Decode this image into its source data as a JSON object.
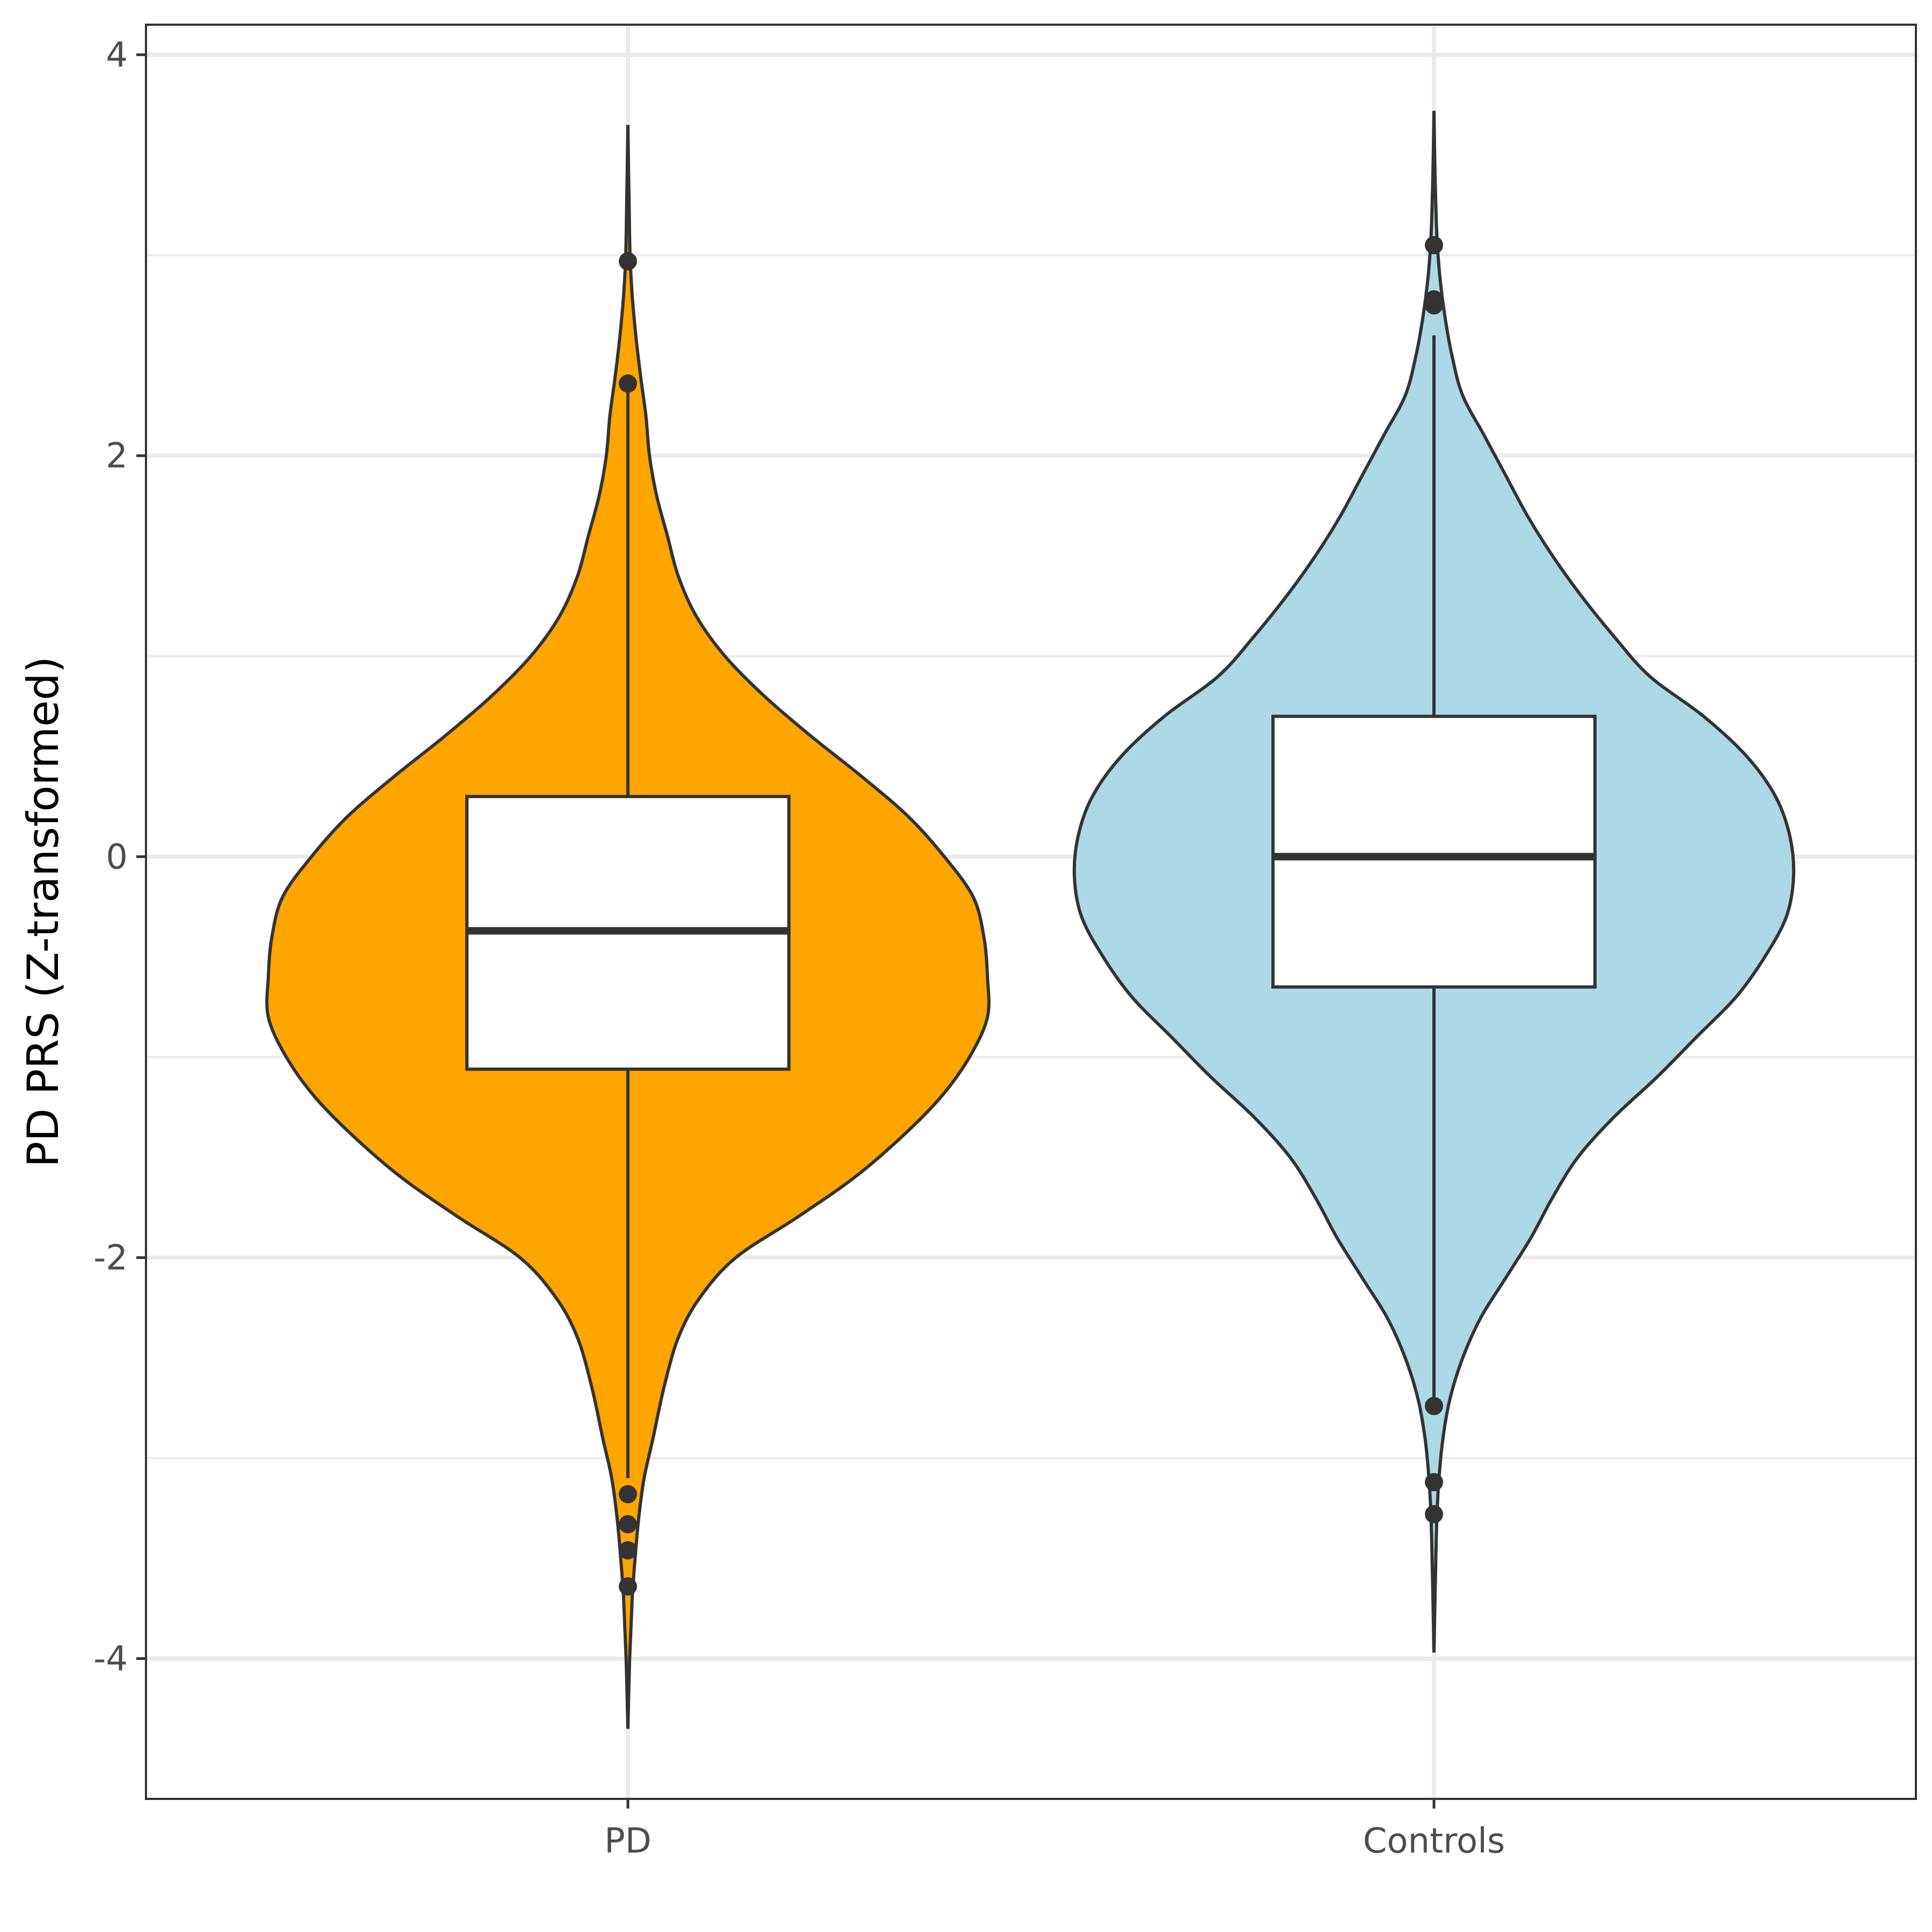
{
  "chart_data": {
    "type": "violin",
    "title": "",
    "xlabel": "",
    "ylabel": "PD PRS (Z-transformed)",
    "ylim": [
      -4.7,
      4.15
    ],
    "y_ticks": [
      -4,
      -2,
      0,
      2,
      4
    ],
    "y_tick_labels": [
      "-4",
      "-2",
      "0",
      "2",
      "4"
    ],
    "grid": true,
    "legend": "none",
    "categories": [
      "PD",
      "Controls"
    ],
    "groups": [
      {
        "name": "PD",
        "fill": "#FFA500",
        "range": [
          -4.35,
          3.65
        ],
        "box": {
          "q1": -1.06,
          "median": -0.37,
          "q3": 0.3,
          "whisker_low": -3.1,
          "whisker_high": 2.35
        },
        "outliers": [
          2.97,
          2.36,
          -3.18,
          -3.33,
          -3.46,
          -3.64
        ],
        "density_profile": [
          [
            -4.35,
            0.0
          ],
          [
            -4.0,
            0.005
          ],
          [
            -3.7,
            0.012
          ],
          [
            -3.5,
            0.02
          ],
          [
            -3.3,
            0.03
          ],
          [
            -3.1,
            0.045
          ],
          [
            -2.9,
            0.07
          ],
          [
            -2.65,
            0.1
          ],
          [
            -2.4,
            0.14
          ],
          [
            -2.2,
            0.2
          ],
          [
            -2.0,
            0.3
          ],
          [
            -1.8,
            0.47
          ],
          [
            -1.6,
            0.63
          ],
          [
            -1.4,
            0.76
          ],
          [
            -1.2,
            0.87
          ],
          [
            -1.0,
            0.95
          ],
          [
            -0.8,
            1.0
          ],
          [
            -0.6,
            1.0
          ],
          [
            -0.4,
            0.99
          ],
          [
            -0.2,
            0.96
          ],
          [
            0.0,
            0.88
          ],
          [
            0.2,
            0.78
          ],
          [
            0.4,
            0.65
          ],
          [
            0.6,
            0.51
          ],
          [
            0.8,
            0.38
          ],
          [
            1.0,
            0.27
          ],
          [
            1.2,
            0.19
          ],
          [
            1.4,
            0.14
          ],
          [
            1.6,
            0.11
          ],
          [
            1.8,
            0.08
          ],
          [
            2.0,
            0.06
          ],
          [
            2.2,
            0.05
          ],
          [
            2.4,
            0.035
          ],
          [
            2.6,
            0.022
          ],
          [
            2.8,
            0.012
          ],
          [
            3.0,
            0.006
          ],
          [
            3.3,
            0.003
          ],
          [
            3.65,
            0.0
          ]
        ]
      },
      {
        "name": "Controls",
        "fill": "#ADD8E6",
        "range": [
          -3.97,
          3.72
        ],
        "box": {
          "q1": -0.65,
          "median": 0.0,
          "q3": 0.7,
          "whisker_low": -2.75,
          "whisker_high": 2.6
        },
        "outliers": [
          3.05,
          2.78,
          2.75,
          -2.74,
          -3.12,
          -3.28
        ],
        "density_profile": [
          [
            -3.97,
            0.0
          ],
          [
            -3.6,
            0.004
          ],
          [
            -3.3,
            0.008
          ],
          [
            -3.1,
            0.014
          ],
          [
            -2.9,
            0.025
          ],
          [
            -2.7,
            0.045
          ],
          [
            -2.5,
            0.08
          ],
          [
            -2.3,
            0.13
          ],
          [
            -2.1,
            0.2
          ],
          [
            -1.9,
            0.27
          ],
          [
            -1.7,
            0.33
          ],
          [
            -1.5,
            0.4
          ],
          [
            -1.3,
            0.5
          ],
          [
            -1.1,
            0.62
          ],
          [
            -0.9,
            0.73
          ],
          [
            -0.7,
            0.84
          ],
          [
            -0.5,
            0.92
          ],
          [
            -0.3,
            0.98
          ],
          [
            -0.1,
            1.0
          ],
          [
            0.1,
            0.99
          ],
          [
            0.3,
            0.95
          ],
          [
            0.5,
            0.87
          ],
          [
            0.7,
            0.75
          ],
          [
            0.9,
            0.6
          ],
          [
            1.1,
            0.5
          ],
          [
            1.3,
            0.41
          ],
          [
            1.5,
            0.33
          ],
          [
            1.7,
            0.26
          ],
          [
            1.9,
            0.2
          ],
          [
            2.1,
            0.14
          ],
          [
            2.3,
            0.08
          ],
          [
            2.5,
            0.05
          ],
          [
            2.7,
            0.03
          ],
          [
            2.9,
            0.016
          ],
          [
            3.1,
            0.008
          ],
          [
            3.4,
            0.003
          ],
          [
            3.72,
            0.0
          ]
        ]
      }
    ]
  }
}
